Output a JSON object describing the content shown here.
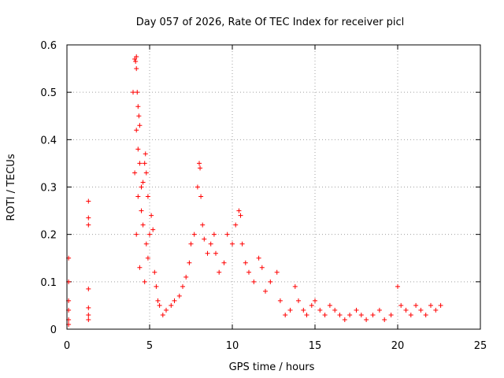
{
  "chart_data": {
    "type": "scatter",
    "title": "Day 057 of 2026, Rate Of TEC Index for receiver picl",
    "xlabel": "GPS time / hours",
    "ylabel": "ROTI / TECUs",
    "xlim": [
      0,
      25
    ],
    "ylim": [
      0,
      0.6
    ],
    "grid": true,
    "marker": "+",
    "color": "#ff0000",
    "x_ticks": [
      0,
      5,
      10,
      15,
      20,
      25
    ],
    "x_tick_labels": [
      "0",
      "5",
      "10",
      "15",
      "20",
      "25"
    ],
    "y_ticks": [
      0,
      0.1,
      0.2,
      0.3,
      0.4,
      0.5,
      0.6
    ],
    "y_tick_labels": [
      "0",
      "0.1",
      "0.2",
      "0.3",
      "0.4",
      "0.5",
      "0.6"
    ],
    "series": [
      {
        "name": "ROTI",
        "points": [
          [
            0.1,
            0.15
          ],
          [
            0.1,
            0.1
          ],
          [
            0.1,
            0.06
          ],
          [
            0.1,
            0.04
          ],
          [
            0.1,
            0.02
          ],
          [
            0.1,
            0.01
          ],
          [
            1.3,
            0.27
          ],
          [
            1.3,
            0.235
          ],
          [
            1.3,
            0.22
          ],
          [
            1.3,
            0.085
          ],
          [
            1.3,
            0.045
          ],
          [
            1.3,
            0.03
          ],
          [
            1.3,
            0.02
          ],
          [
            4.0,
            0.5
          ],
          [
            4.1,
            0.57
          ],
          [
            4.15,
            0.565
          ],
          [
            4.2,
            0.575
          ],
          [
            4.2,
            0.55
          ],
          [
            4.25,
            0.5
          ],
          [
            4.3,
            0.47
          ],
          [
            4.35,
            0.45
          ],
          [
            4.4,
            0.43
          ],
          [
            4.2,
            0.42
          ],
          [
            4.3,
            0.38
          ],
          [
            4.4,
            0.35
          ],
          [
            4.1,
            0.33
          ],
          [
            4.5,
            0.3
          ],
          [
            4.3,
            0.28
          ],
          [
            4.6,
            0.31
          ],
          [
            4.7,
            0.35
          ],
          [
            4.75,
            0.37
          ],
          [
            4.8,
            0.33
          ],
          [
            4.9,
            0.28
          ],
          [
            4.5,
            0.25
          ],
          [
            4.6,
            0.22
          ],
          [
            4.2,
            0.2
          ],
          [
            4.8,
            0.18
          ],
          [
            4.9,
            0.15
          ],
          [
            5.0,
            0.2
          ],
          [
            5.1,
            0.24
          ],
          [
            5.2,
            0.21
          ],
          [
            4.4,
            0.13
          ],
          [
            4.7,
            0.1
          ],
          [
            5.3,
            0.12
          ],
          [
            5.4,
            0.09
          ],
          [
            5.5,
            0.06
          ],
          [
            5.6,
            0.05
          ],
          [
            5.8,
            0.03
          ],
          [
            6.0,
            0.04
          ],
          [
            6.3,
            0.05
          ],
          [
            6.5,
            0.06
          ],
          [
            6.8,
            0.07
          ],
          [
            7.0,
            0.09
          ],
          [
            7.2,
            0.11
          ],
          [
            7.4,
            0.14
          ],
          [
            7.5,
            0.18
          ],
          [
            7.7,
            0.2
          ],
          [
            7.9,
            0.3
          ],
          [
            8.0,
            0.35
          ],
          [
            8.05,
            0.34
          ],
          [
            8.1,
            0.28
          ],
          [
            8.2,
            0.22
          ],
          [
            8.3,
            0.19
          ],
          [
            8.5,
            0.16
          ],
          [
            8.7,
            0.18
          ],
          [
            8.9,
            0.2
          ],
          [
            9.0,
            0.16
          ],
          [
            9.2,
            0.12
          ],
          [
            9.5,
            0.14
          ],
          [
            9.7,
            0.2
          ],
          [
            10.0,
            0.18
          ],
          [
            10.2,
            0.22
          ],
          [
            10.4,
            0.25
          ],
          [
            10.5,
            0.24
          ],
          [
            10.6,
            0.18
          ],
          [
            10.8,
            0.14
          ],
          [
            11.0,
            0.12
          ],
          [
            11.3,
            0.1
          ],
          [
            11.6,
            0.15
          ],
          [
            11.8,
            0.13
          ],
          [
            12.0,
            0.08
          ],
          [
            12.3,
            0.1
          ],
          [
            12.7,
            0.12
          ],
          [
            12.9,
            0.06
          ],
          [
            13.2,
            0.03
          ],
          [
            13.5,
            0.04
          ],
          [
            13.8,
            0.09
          ],
          [
            14.0,
            0.06
          ],
          [
            14.3,
            0.04
          ],
          [
            14.5,
            0.03
          ],
          [
            14.8,
            0.05
          ],
          [
            15.0,
            0.06
          ],
          [
            15.3,
            0.04
          ],
          [
            15.6,
            0.03
          ],
          [
            15.9,
            0.05
          ],
          [
            16.2,
            0.04
          ],
          [
            16.5,
            0.03
          ],
          [
            16.8,
            0.02
          ],
          [
            17.1,
            0.03
          ],
          [
            17.5,
            0.04
          ],
          [
            17.8,
            0.03
          ],
          [
            18.1,
            0.02
          ],
          [
            18.5,
            0.03
          ],
          [
            18.9,
            0.04
          ],
          [
            19.2,
            0.02
          ],
          [
            19.6,
            0.03
          ],
          [
            20.0,
            0.09
          ],
          [
            20.2,
            0.05
          ],
          [
            20.5,
            0.04
          ],
          [
            20.8,
            0.03
          ],
          [
            21.1,
            0.05
          ],
          [
            21.4,
            0.04
          ],
          [
            21.7,
            0.03
          ],
          [
            22.0,
            0.05
          ],
          [
            22.3,
            0.04
          ],
          [
            22.6,
            0.05
          ]
        ]
      }
    ]
  }
}
